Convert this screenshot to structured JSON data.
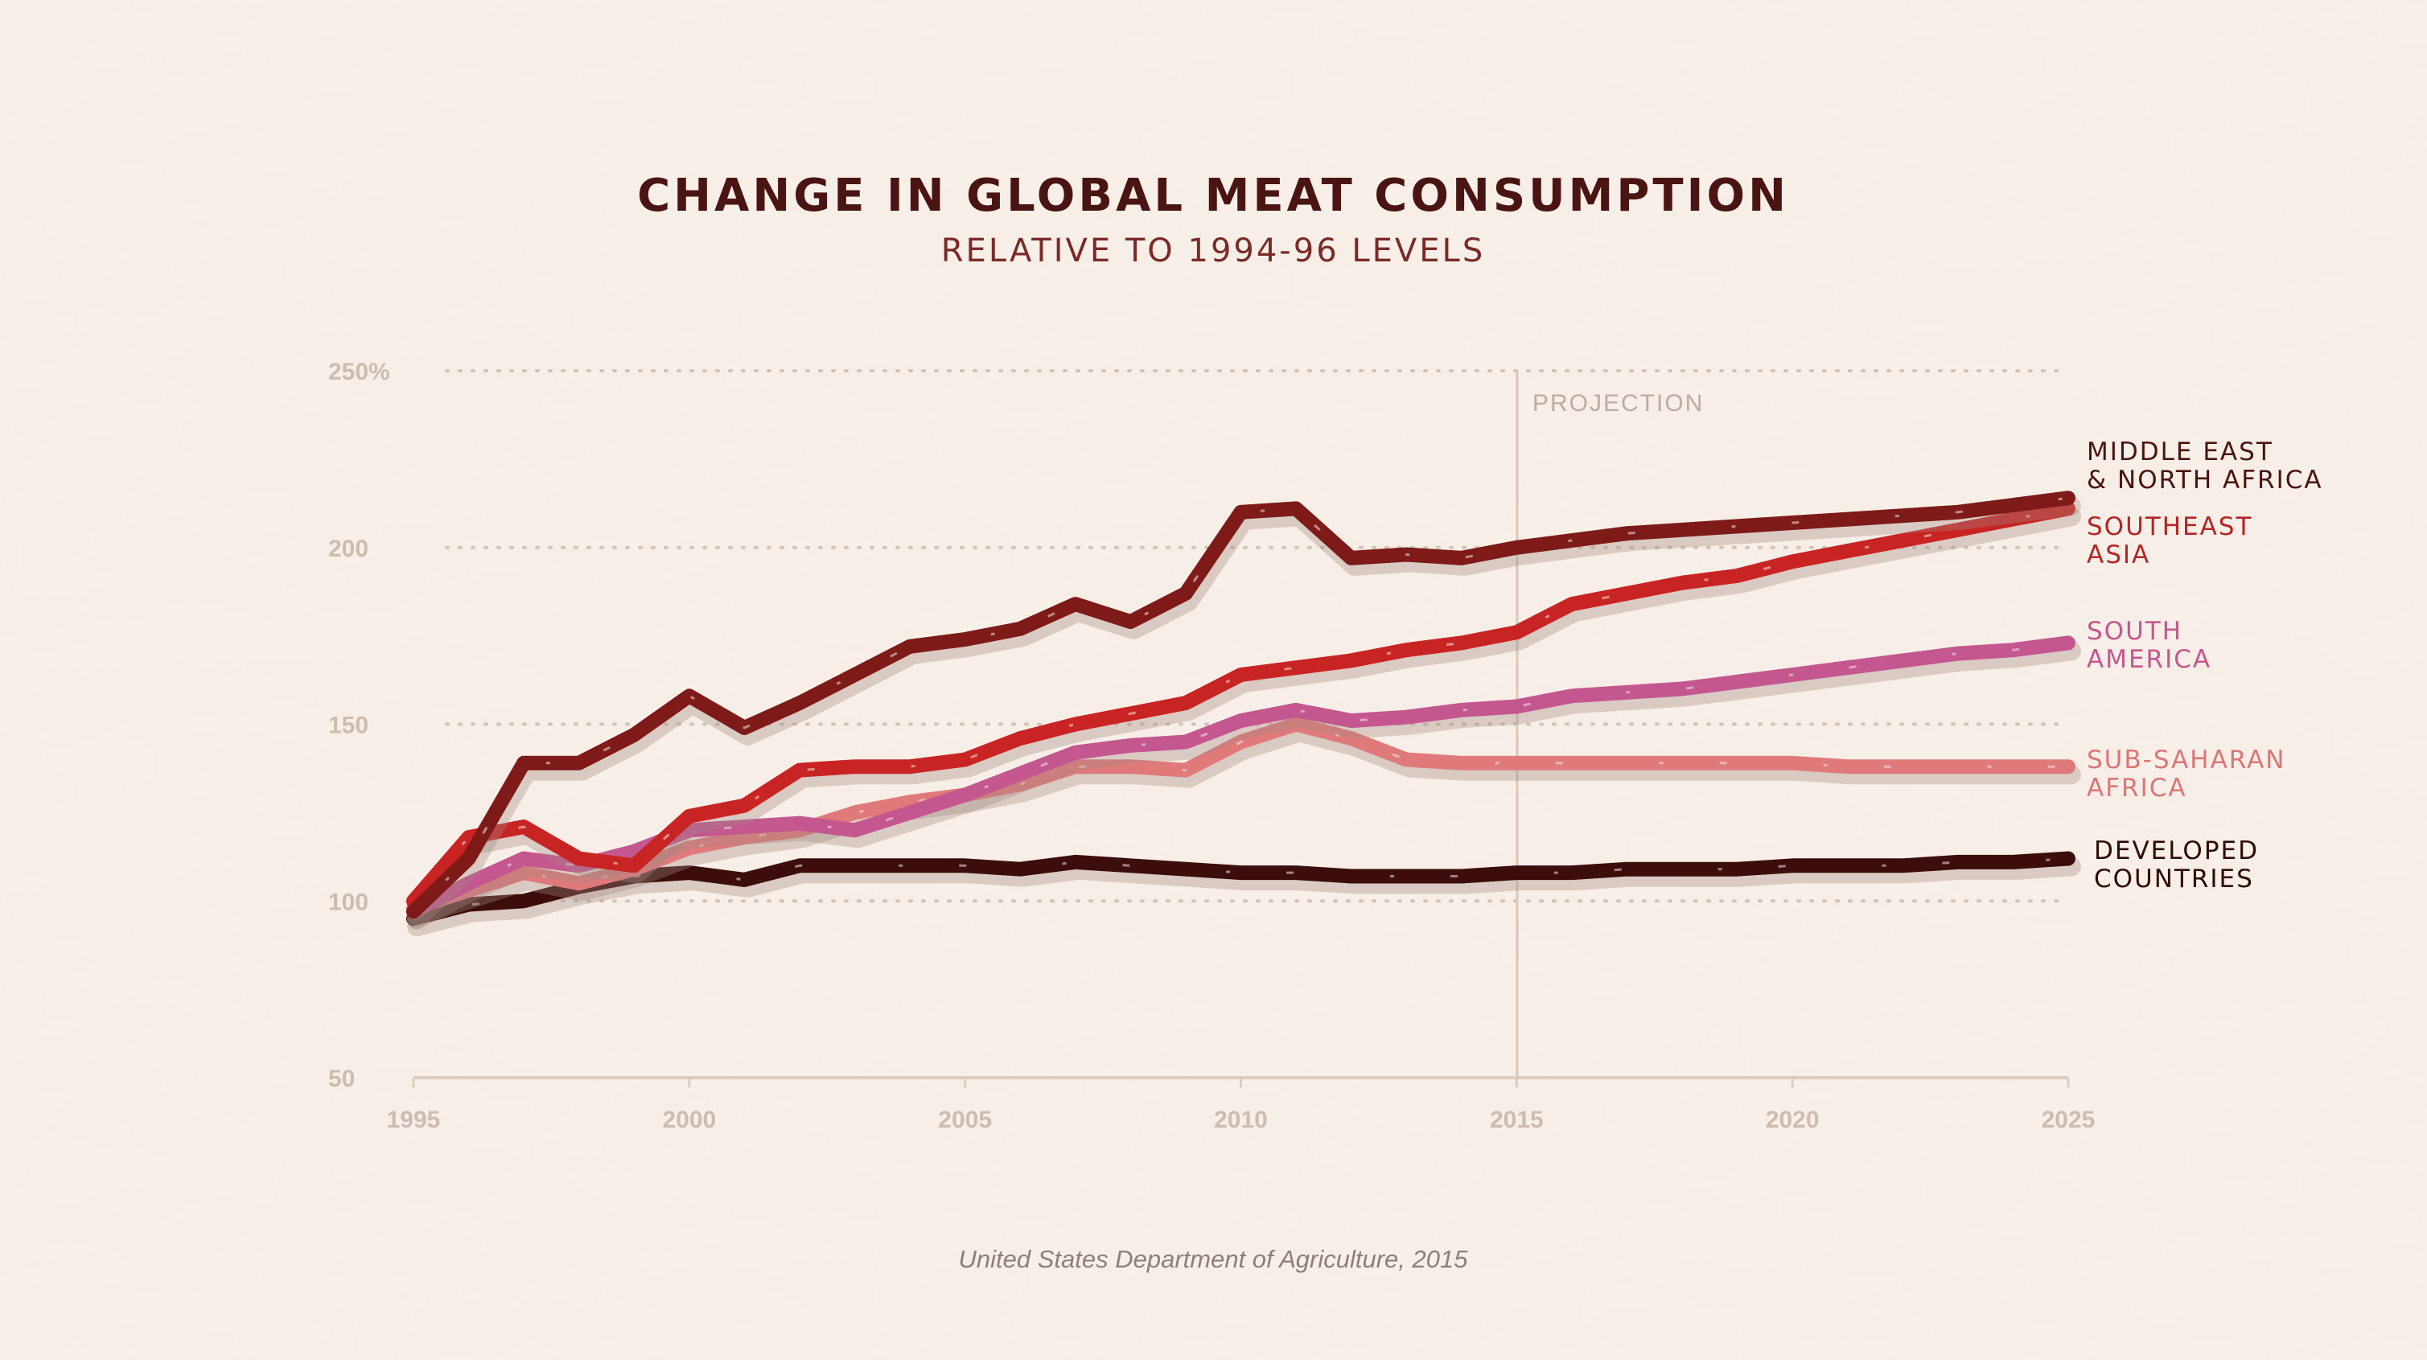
{
  "chart_data": {
    "type": "line",
    "title": "CHANGE IN GLOBAL MEAT CONSUMPTION",
    "subtitle": "RELATIVE TO 1994-96 LEVELS",
    "xlabel": "",
    "ylabel": "",
    "xlim": [
      1995,
      2025
    ],
    "ylim": [
      50,
      250
    ],
    "y_ticks": [
      {
        "value": 250,
        "label": "250%"
      },
      {
        "value": 200,
        "label": "200"
      },
      {
        "value": 150,
        "label": "150"
      },
      {
        "value": 100,
        "label": "100"
      },
      {
        "value": 50,
        "label": "50"
      }
    ],
    "x_ticks": [
      {
        "value": 1995,
        "label": "1995"
      },
      {
        "value": 2000,
        "label": "2000"
      },
      {
        "value": 2005,
        "label": "2005"
      },
      {
        "value": 2010,
        "label": "2010"
      },
      {
        "value": 2015,
        "label": "2015"
      },
      {
        "value": 2020,
        "label": "2020"
      },
      {
        "value": 2025,
        "label": "2025"
      }
    ],
    "grid": "horizontal-dotted",
    "projection": {
      "start_year": 2015,
      "label": "PROJECTION"
    },
    "source": "United States Department of Agriculture, 2015",
    "series": [
      {
        "name": "DEVELOPED COUNTRIES",
        "label_lines": [
          "DEVELOPED",
          "COUNTRIES"
        ],
        "color": "#3d0c0c",
        "label_color": "#2e0a0a",
        "points": [
          [
            1995,
            95
          ],
          [
            1996,
            99
          ],
          [
            1997,
            100
          ],
          [
            1998,
            104
          ],
          [
            1999,
            107
          ],
          [
            2000,
            108
          ],
          [
            2001,
            106
          ],
          [
            2002,
            110
          ],
          [
            2003,
            110
          ],
          [
            2004,
            110
          ],
          [
            2005,
            110
          ],
          [
            2006,
            109
          ],
          [
            2007,
            111
          ],
          [
            2008,
            110
          ],
          [
            2009,
            109
          ],
          [
            2010,
            108
          ],
          [
            2011,
            108
          ],
          [
            2012,
            107
          ],
          [
            2013,
            107
          ],
          [
            2014,
            107
          ],
          [
            2015,
            108
          ],
          [
            2016,
            108
          ],
          [
            2017,
            109
          ],
          [
            2018,
            109
          ],
          [
            2019,
            109
          ],
          [
            2020,
            110
          ],
          [
            2021,
            110
          ],
          [
            2022,
            110
          ],
          [
            2023,
            111
          ],
          [
            2024,
            111
          ],
          [
            2025,
            112
          ]
        ]
      },
      {
        "name": "SUB-SAHARAN AFRICA",
        "label_lines": [
          "SUB-SAHARAN",
          "AFRICA"
        ],
        "color": "#e07a7a",
        "label_color": "#d97777",
        "points": [
          [
            1995,
            98
          ],
          [
            1996,
            103
          ],
          [
            1997,
            108
          ],
          [
            1998,
            105
          ],
          [
            1999,
            109
          ],
          [
            2000,
            115
          ],
          [
            2001,
            118
          ],
          [
            2002,
            120
          ],
          [
            2003,
            125
          ],
          [
            2004,
            128
          ],
          [
            2005,
            130
          ],
          [
            2006,
            133
          ],
          [
            2007,
            138
          ],
          [
            2008,
            138
          ],
          [
            2009,
            137
          ],
          [
            2010,
            145
          ],
          [
            2011,
            150
          ],
          [
            2012,
            146
          ],
          [
            2013,
            140
          ],
          [
            2014,
            139
          ],
          [
            2015,
            139
          ],
          [
            2016,
            139
          ],
          [
            2017,
            139
          ],
          [
            2018,
            139
          ],
          [
            2019,
            139
          ],
          [
            2020,
            139
          ],
          [
            2021,
            138
          ],
          [
            2022,
            138
          ],
          [
            2023,
            138
          ],
          [
            2024,
            138
          ],
          [
            2025,
            138
          ]
        ]
      },
      {
        "name": "SOUTH AMERICA",
        "label_lines": [
          "SOUTH",
          "AMERICA"
        ],
        "color": "#c4578f",
        "label_color": "#c4578f",
        "points": [
          [
            1995,
            97
          ],
          [
            1996,
            105
          ],
          [
            1997,
            112
          ],
          [
            1998,
            110
          ],
          [
            1999,
            114
          ],
          [
            2000,
            120
          ],
          [
            2001,
            121
          ],
          [
            2002,
            122
          ],
          [
            2003,
            120
          ],
          [
            2004,
            125
          ],
          [
            2005,
            130
          ],
          [
            2006,
            136
          ],
          [
            2007,
            142
          ],
          [
            2008,
            144
          ],
          [
            2009,
            145
          ],
          [
            2010,
            151
          ],
          [
            2011,
            154
          ],
          [
            2012,
            151
          ],
          [
            2013,
            152
          ],
          [
            2014,
            154
          ],
          [
            2015,
            155
          ],
          [
            2016,
            158
          ],
          [
            2017,
            159
          ],
          [
            2018,
            160
          ],
          [
            2019,
            162
          ],
          [
            2020,
            164
          ],
          [
            2021,
            166
          ],
          [
            2022,
            168
          ],
          [
            2023,
            170
          ],
          [
            2024,
            171
          ],
          [
            2025,
            173
          ]
        ]
      },
      {
        "name": "SOUTHEAST ASIA",
        "label_lines": [
          "SOUTHEAST",
          "ASIA"
        ],
        "color": "#c92424",
        "label_color": "#b52525",
        "points": [
          [
            1995,
            100
          ],
          [
            1996,
            118
          ],
          [
            1997,
            121
          ],
          [
            1998,
            112
          ],
          [
            1999,
            110
          ],
          [
            2000,
            124
          ],
          [
            2001,
            127
          ],
          [
            2002,
            137
          ],
          [
            2003,
            138
          ],
          [
            2004,
            138
          ],
          [
            2005,
            140
          ],
          [
            2006,
            146
          ],
          [
            2007,
            150
          ],
          [
            2008,
            153
          ],
          [
            2009,
            156
          ],
          [
            2010,
            164
          ],
          [
            2011,
            166
          ],
          [
            2012,
            168
          ],
          [
            2013,
            171
          ],
          [
            2014,
            173
          ],
          [
            2015,
            176
          ],
          [
            2016,
            184
          ],
          [
            2017,
            187
          ],
          [
            2018,
            190
          ],
          [
            2019,
            192
          ],
          [
            2020,
            196
          ],
          [
            2021,
            199
          ],
          [
            2022,
            202
          ],
          [
            2023,
            205
          ],
          [
            2024,
            208
          ],
          [
            2025,
            211
          ]
        ]
      },
      {
        "name": "MIDDLE EAST & NORTH AFRICA",
        "label_lines": [
          "MIDDLE EAST",
          "& NORTH AFRICA"
        ],
        "color": "#7e1a18",
        "label_color": "#4a1412",
        "points": [
          [
            1995,
            97
          ],
          [
            1996,
            112
          ],
          [
            1997,
            139
          ],
          [
            1998,
            139
          ],
          [
            1999,
            147
          ],
          [
            2000,
            158
          ],
          [
            2001,
            149
          ],
          [
            2002,
            156
          ],
          [
            2003,
            164
          ],
          [
            2004,
            172
          ],
          [
            2005,
            174
          ],
          [
            2006,
            177
          ],
          [
            2007,
            184
          ],
          [
            2008,
            179
          ],
          [
            2009,
            187
          ],
          [
            2010,
            210
          ],
          [
            2011,
            211
          ],
          [
            2012,
            197
          ],
          [
            2013,
            198
          ],
          [
            2014,
            197
          ],
          [
            2015,
            200
          ],
          [
            2016,
            202
          ],
          [
            2017,
            204
          ],
          [
            2018,
            205
          ],
          [
            2019,
            206
          ],
          [
            2020,
            207
          ],
          [
            2021,
            208
          ],
          [
            2022,
            209
          ],
          [
            2023,
            210
          ],
          [
            2024,
            212
          ],
          [
            2025,
            214
          ]
        ]
      }
    ]
  }
}
